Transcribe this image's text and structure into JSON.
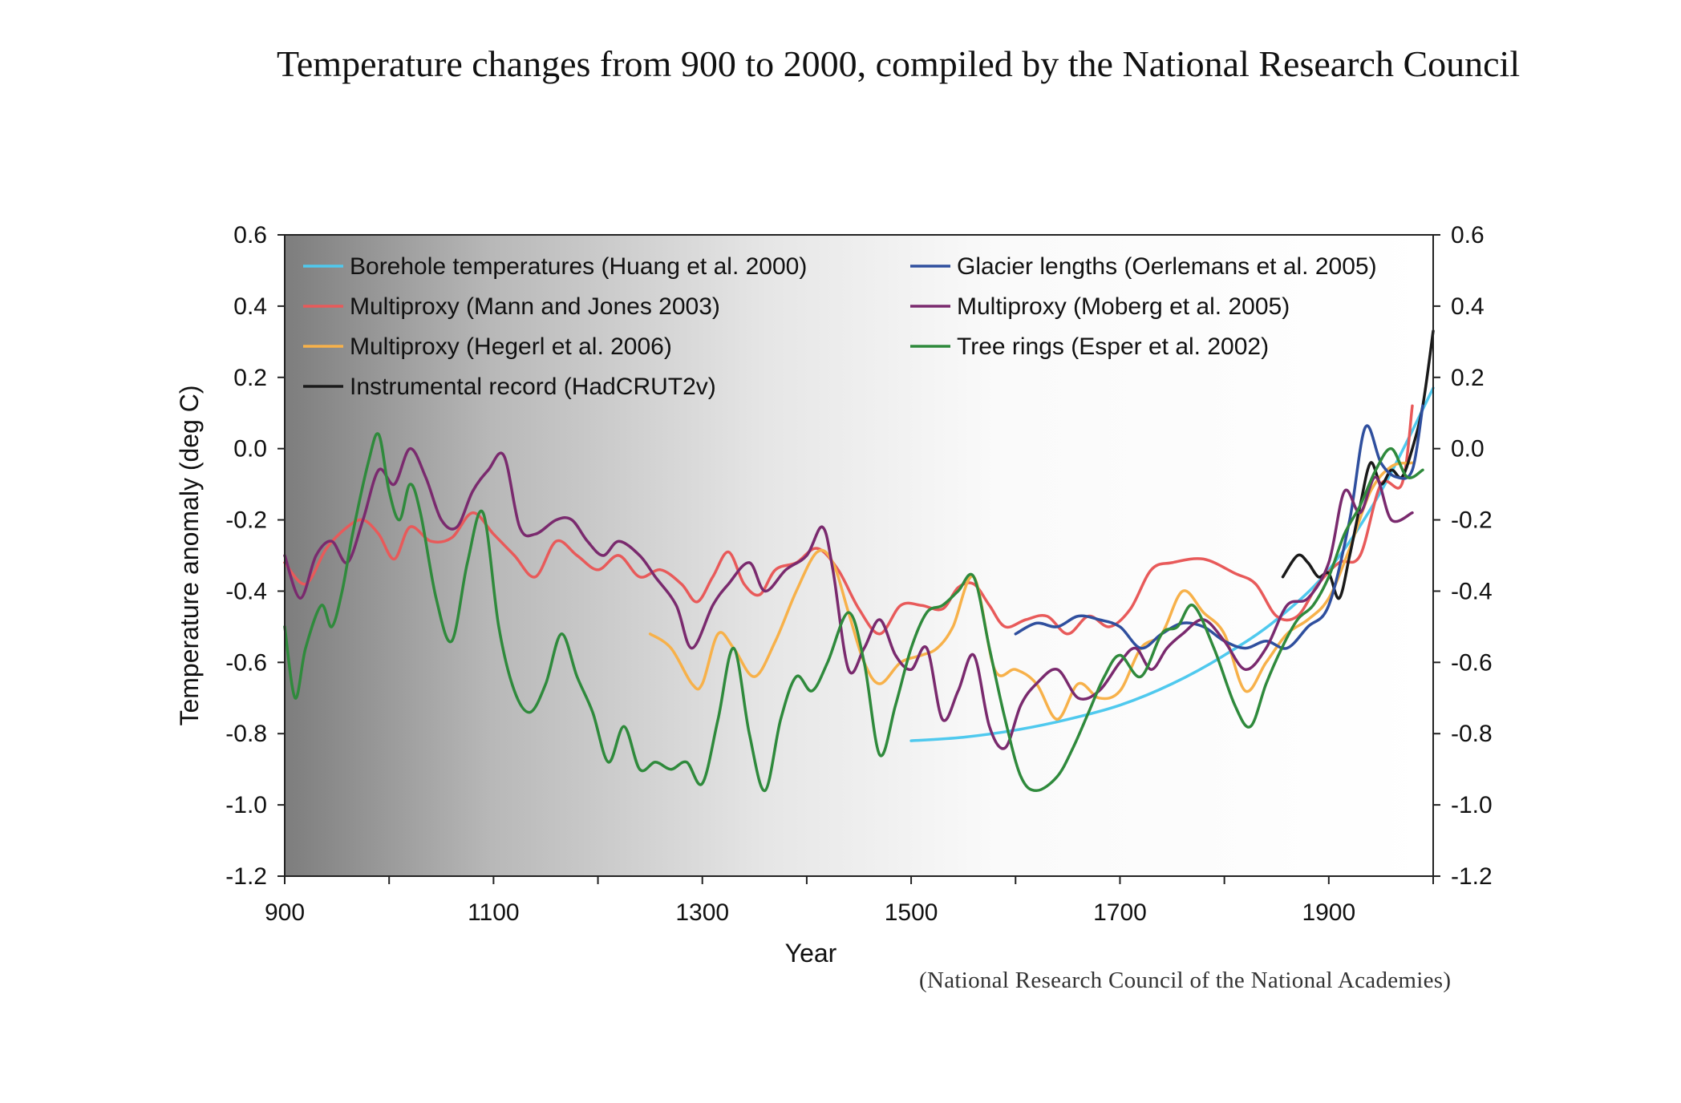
{
  "page": {
    "title": "Temperature changes from 900 to 2000, compiled by the National Research Council",
    "source": "(National Research Council of the National Academies)"
  },
  "chart_data": {
    "type": "line",
    "title": "Temperature changes from 900 to 2000, compiled by the National Research Council",
    "xlabel": "Year",
    "ylabel": "Temperature anomaly (deg C)",
    "xlim": [
      900,
      2000
    ],
    "ylim": [
      -1.2,
      0.6
    ],
    "xticks": [
      900,
      1100,
      1300,
      1500,
      1700,
      1900
    ],
    "yticks": [
      0.6,
      0.4,
      0.2,
      0.0,
      -0.2,
      -0.4,
      -0.6,
      -0.8,
      -1.0,
      -1.2
    ],
    "ytick_labels": [
      "0.6",
      "0.4",
      "0.2",
      "0.0",
      "-0.2",
      "-0.4",
      "-0.6",
      "-0.8",
      "-1.0",
      "-1.2"
    ],
    "right_axis_mirrors_left": true,
    "legend_position": "top, two columns",
    "background": "gradient dark grey (left) to white (right)",
    "series": [
      {
        "name": "Borehole temperatures (Huang et al. 2000)",
        "color": "#4fc9ee",
        "x": [
          1500,
          1550,
          1600,
          1650,
          1700,
          1750,
          1800,
          1850,
          1900,
          1950,
          2000
        ],
        "y": [
          -0.82,
          -0.81,
          -0.79,
          -0.76,
          -0.72,
          -0.66,
          -0.58,
          -0.48,
          -0.34,
          -0.12,
          0.17
        ]
      },
      {
        "name": "Multiproxy (Mann and Jones 2003)",
        "color": "#e85a5a",
        "x": [
          900,
          920,
          940,
          960,
          975,
          990,
          1005,
          1020,
          1040,
          1060,
          1080,
          1100,
          1120,
          1140,
          1160,
          1180,
          1200,
          1220,
          1240,
          1260,
          1280,
          1295,
          1310,
          1325,
          1340,
          1355,
          1370,
          1390,
          1410,
          1430,
          1450,
          1470,
          1490,
          1510,
          1530,
          1545,
          1560,
          1575,
          1590,
          1610,
          1630,
          1650,
          1670,
          1690,
          1710,
          1730,
          1750,
          1780,
          1810,
          1830,
          1850,
          1870,
          1890,
          1910,
          1930,
          1950,
          1970,
          1980
        ],
        "y": [
          -0.32,
          -0.38,
          -0.28,
          -0.22,
          -0.2,
          -0.24,
          -0.31,
          -0.22,
          -0.26,
          -0.25,
          -0.18,
          -0.24,
          -0.3,
          -0.36,
          -0.26,
          -0.3,
          -0.34,
          -0.3,
          -0.36,
          -0.34,
          -0.38,
          -0.43,
          -0.36,
          -0.29,
          -0.38,
          -0.41,
          -0.34,
          -0.32,
          -0.28,
          -0.34,
          -0.45,
          -0.52,
          -0.44,
          -0.44,
          -0.45,
          -0.39,
          -0.38,
          -0.44,
          -0.5,
          -0.48,
          -0.47,
          -0.52,
          -0.47,
          -0.5,
          -0.45,
          -0.34,
          -0.32,
          -0.31,
          -0.35,
          -0.38,
          -0.47,
          -0.47,
          -0.38,
          -0.32,
          -0.3,
          -0.1,
          -0.1,
          0.12
        ]
      },
      {
        "name": "Multiproxy (Hegerl et al. 2006)",
        "color": "#f7b14a",
        "x": [
          1250,
          1270,
          1290,
          1300,
          1315,
          1330,
          1350,
          1370,
          1390,
          1410,
          1425,
          1440,
          1455,
          1470,
          1490,
          1510,
          1525,
          1540,
          1560,
          1580,
          1600,
          1620,
          1640,
          1660,
          1680,
          1700,
          1720,
          1740,
          1760,
          1780,
          1800,
          1820,
          1840,
          1860,
          1880,
          1900,
          1920,
          1940,
          1960,
          1980
        ],
        "y": [
          -0.52,
          -0.56,
          -0.66,
          -0.66,
          -0.52,
          -0.56,
          -0.64,
          -0.54,
          -0.4,
          -0.29,
          -0.32,
          -0.46,
          -0.6,
          -0.66,
          -0.6,
          -0.58,
          -0.56,
          -0.5,
          -0.36,
          -0.62,
          -0.62,
          -0.66,
          -0.76,
          -0.66,
          -0.7,
          -0.68,
          -0.56,
          -0.52,
          -0.4,
          -0.46,
          -0.52,
          -0.68,
          -0.6,
          -0.52,
          -0.48,
          -0.42,
          -0.28,
          -0.12,
          -0.05,
          -0.04
        ]
      },
      {
        "name": "Instrumental record (HadCRUT2v)",
        "color": "#1a1a1a",
        "x": [
          1856,
          1870,
          1880,
          1890,
          1900,
          1910,
          1920,
          1930,
          1940,
          1950,
          1960,
          1970,
          1980,
          1990,
          2000
        ],
        "y": [
          -0.36,
          -0.3,
          -0.32,
          -0.36,
          -0.35,
          -0.42,
          -0.3,
          -0.16,
          -0.04,
          -0.1,
          -0.06,
          -0.08,
          0.0,
          0.12,
          0.33
        ]
      },
      {
        "name": "Glacier lengths (Oerlemans et al. 2005)",
        "color": "#2f4f9e",
        "x": [
          1600,
          1620,
          1640,
          1660,
          1680,
          1700,
          1720,
          1740,
          1760,
          1780,
          1800,
          1820,
          1840,
          1860,
          1880,
          1900,
          1920,
          1935,
          1950,
          1965,
          1980,
          1990
        ],
        "y": [
          -0.52,
          -0.49,
          -0.5,
          -0.47,
          -0.48,
          -0.5,
          -0.56,
          -0.52,
          -0.49,
          -0.5,
          -0.54,
          -0.56,
          -0.54,
          -0.56,
          -0.5,
          -0.44,
          -0.2,
          0.06,
          -0.04,
          -0.08,
          -0.06,
          0.12
        ]
      },
      {
        "name": "Multiproxy (Moberg et al. 2005)",
        "color": "#7a2a6e",
        "x": [
          900,
          915,
          930,
          945,
          960,
          975,
          990,
          1005,
          1020,
          1035,
          1050,
          1065,
          1080,
          1095,
          1110,
          1125,
          1140,
          1160,
          1175,
          1190,
          1205,
          1220,
          1240,
          1255,
          1275,
          1290,
          1310,
          1325,
          1345,
          1360,
          1380,
          1400,
          1415,
          1425,
          1440,
          1455,
          1470,
          1485,
          1500,
          1515,
          1530,
          1545,
          1560,
          1575,
          1590,
          1605,
          1620,
          1640,
          1660,
          1680,
          1700,
          1715,
          1730,
          1745,
          1760,
          1780,
          1800,
          1820,
          1840,
          1860,
          1880,
          1900,
          1915,
          1930,
          1945,
          1960,
          1980
        ],
        "y": [
          -0.3,
          -0.42,
          -0.3,
          -0.26,
          -0.32,
          -0.2,
          -0.06,
          -0.1,
          0.0,
          -0.08,
          -0.2,
          -0.22,
          -0.12,
          -0.06,
          -0.02,
          -0.22,
          -0.24,
          -0.2,
          -0.2,
          -0.26,
          -0.3,
          -0.26,
          -0.3,
          -0.36,
          -0.44,
          -0.56,
          -0.44,
          -0.38,
          -0.32,
          -0.4,
          -0.34,
          -0.3,
          -0.22,
          -0.34,
          -0.62,
          -0.56,
          -0.48,
          -0.58,
          -0.62,
          -0.56,
          -0.76,
          -0.68,
          -0.58,
          -0.78,
          -0.84,
          -0.72,
          -0.66,
          -0.62,
          -0.7,
          -0.68,
          -0.6,
          -0.56,
          -0.62,
          -0.56,
          -0.52,
          -0.48,
          -0.54,
          -0.62,
          -0.56,
          -0.44,
          -0.42,
          -0.32,
          -0.12,
          -0.18,
          -0.08,
          -0.2,
          -0.18
        ]
      },
      {
        "name": "Tree rings (Esper et al. 2002)",
        "color": "#2f8a3c",
        "x": [
          900,
          910,
          920,
          935,
          945,
          955,
          965,
          980,
          990,
          1000,
          1010,
          1020,
          1030,
          1045,
          1060,
          1075,
          1090,
          1105,
          1120,
          1135,
          1150,
          1165,
          1180,
          1195,
          1210,
          1225,
          1240,
          1255,
          1270,
          1285,
          1300,
          1315,
          1330,
          1345,
          1360,
          1375,
          1390,
          1405,
          1420,
          1440,
          1455,
          1470,
          1485,
          1500,
          1515,
          1530,
          1545,
          1560,
          1575,
          1590,
          1605,
          1620,
          1640,
          1655,
          1670,
          1685,
          1700,
          1720,
          1740,
          1755,
          1770,
          1790,
          1810,
          1825,
          1840,
          1855,
          1870,
          1885,
          1900,
          1915,
          1930,
          1945,
          1960,
          1975,
          1990
        ],
        "y": [
          -0.5,
          -0.7,
          -0.56,
          -0.44,
          -0.5,
          -0.4,
          -0.24,
          -0.04,
          0.04,
          -0.12,
          -0.2,
          -0.1,
          -0.18,
          -0.42,
          -0.54,
          -0.32,
          -0.18,
          -0.5,
          -0.68,
          -0.74,
          -0.66,
          -0.52,
          -0.64,
          -0.74,
          -0.88,
          -0.78,
          -0.9,
          -0.88,
          -0.9,
          -0.88,
          -0.94,
          -0.76,
          -0.56,
          -0.8,
          -0.96,
          -0.76,
          -0.64,
          -0.68,
          -0.6,
          -0.46,
          -0.6,
          -0.86,
          -0.72,
          -0.56,
          -0.46,
          -0.44,
          -0.4,
          -0.36,
          -0.56,
          -0.76,
          -0.92,
          -0.96,
          -0.92,
          -0.84,
          -0.74,
          -0.64,
          -0.58,
          -0.64,
          -0.52,
          -0.5,
          -0.44,
          -0.56,
          -0.72,
          -0.78,
          -0.66,
          -0.56,
          -0.48,
          -0.44,
          -0.36,
          -0.24,
          -0.16,
          -0.06,
          0.0,
          -0.08,
          -0.06
        ]
      }
    ]
  }
}
